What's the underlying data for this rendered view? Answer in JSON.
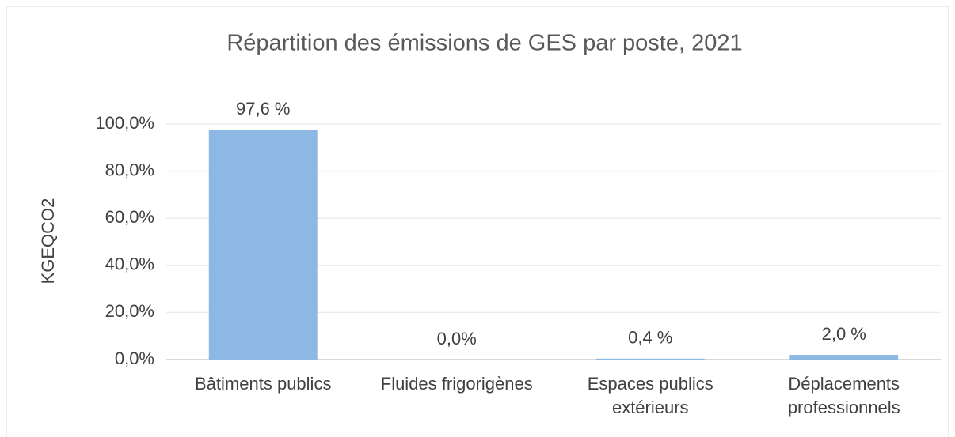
{
  "chart_data": {
    "type": "bar",
    "title": "Répartition des émissions de GES par poste, 2021",
    "y_label": "KGEQCO2",
    "categories": [
      "Bâtiments publics",
      "Fluides frigorigènes",
      "Espaces publics extérieurs",
      "Déplacements professionnels"
    ],
    "values": [
      97.6,
      0,
      0.4,
      2.0
    ],
    "value_labels": [
      "97,6 %",
      "0,0%",
      "0,4 %",
      "2,0 %"
    ],
    "color": "#8db8e3",
    "ylim": [
      0,
      100
    ],
    "yticks": [
      {
        "value": 0,
        "label": "0,0%"
      },
      {
        "value": 20,
        "label": "20,0%"
      },
      {
        "value": 40,
        "label": "40,0%"
      },
      {
        "value": 60,
        "label": "60,0%"
      },
      {
        "value": 80,
        "label": "80,0%"
      },
      {
        "value": 100,
        "label": "100,0%"
      }
    ],
    "grid": true
  }
}
